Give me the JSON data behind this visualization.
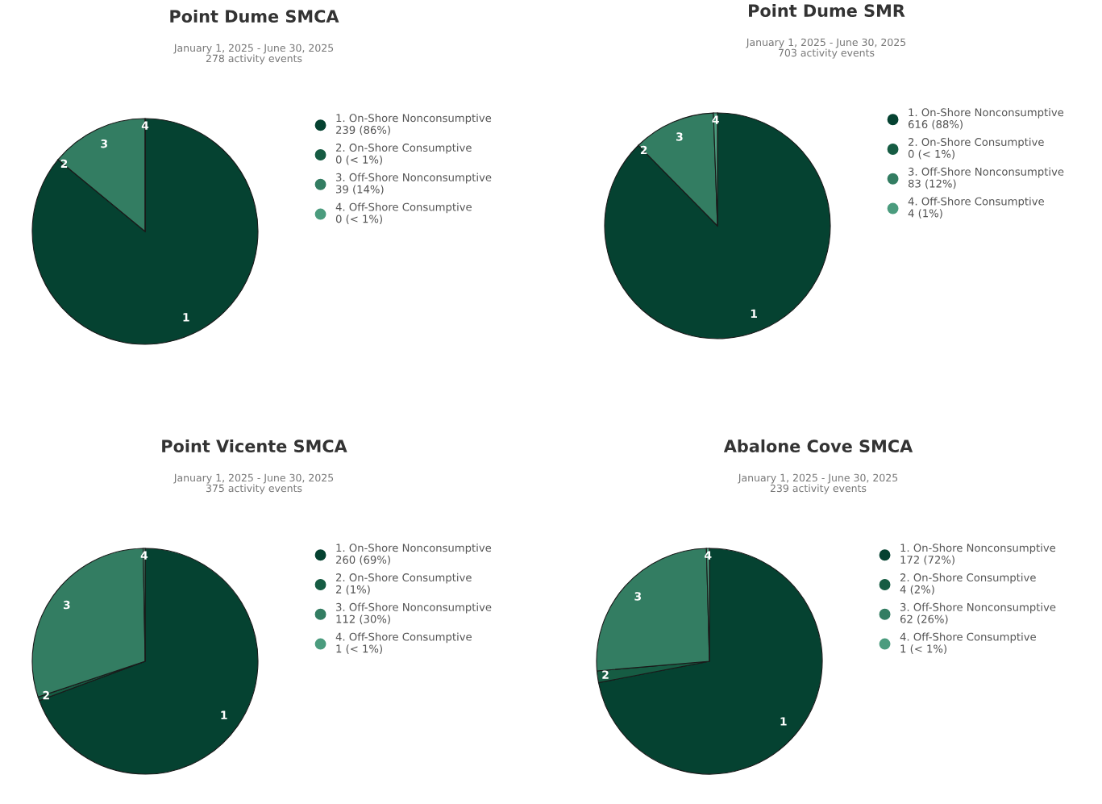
{
  "chart_data": [
    {
      "type": "pie",
      "title": "Point Dume SMCA",
      "subtitle": "January 1, 2025 - June 30, 2025\n278 activity events",
      "categories": [
        "1. On-Shore Nonconsumptive",
        "2. On-Shore Consumptive",
        "3. Off-Shore Nonconsumptive",
        "4. Off-Shore Consumptive"
      ],
      "values": [
        239,
        0,
        39,
        0
      ],
      "value_labels": [
        "239 (86%)",
        "0 (< 1%)",
        "39 (14%)",
        "0 (< 1%)"
      ],
      "colors": [
        "#054231",
        "#165c43",
        "#337d62",
        "#4b9c7e"
      ],
      "annotations": [
        "1",
        "2",
        "3",
        "4"
      ],
      "legend": "right"
    },
    {
      "type": "pie",
      "title": "Point Dume SMR",
      "subtitle": "January 1, 2025 - June 30, 2025\n703 activity events",
      "categories": [
        "1. On-Shore Nonconsumptive",
        "2. On-Shore Consumptive",
        "3. Off-Shore Nonconsumptive",
        "4. Off-Shore Consumptive"
      ],
      "values": [
        616,
        0,
        83,
        4
      ],
      "value_labels": [
        "616 (88%)",
        "0 (< 1%)",
        "83 (12%)",
        "4 (1%)"
      ],
      "colors": [
        "#054231",
        "#165c43",
        "#337d62",
        "#4b9c7e"
      ],
      "annotations": [
        "1",
        "2",
        "3",
        "4"
      ],
      "legend": "right"
    },
    {
      "type": "pie",
      "title": "Point Vicente SMCA",
      "subtitle": "January 1, 2025 - June 30, 2025\n375 activity events",
      "categories": [
        "1. On-Shore Nonconsumptive",
        "2. On-Shore Consumptive",
        "3. Off-Shore Nonconsumptive",
        "4. Off-Shore Consumptive"
      ],
      "values": [
        260,
        2,
        112,
        1
      ],
      "value_labels": [
        "260 (69%)",
        "2 (1%)",
        "112 (30%)",
        "1 (< 1%)"
      ],
      "colors": [
        "#054231",
        "#165c43",
        "#337d62",
        "#4b9c7e"
      ],
      "annotations": [
        "1",
        "2",
        "3",
        "4"
      ],
      "legend": "right"
    },
    {
      "type": "pie",
      "title": "Abalone Cove SMCA",
      "subtitle": "January 1, 2025 - June 30, 2025\n239 activity events",
      "categories": [
        "1. On-Shore Nonconsumptive",
        "2. On-Shore Consumptive",
        "3. Off-Shore Nonconsumptive",
        "4. Off-Shore Consumptive"
      ],
      "values": [
        172,
        4,
        62,
        1
      ],
      "value_labels": [
        "172 (72%)",
        "4 (2%)",
        "62 (26%)",
        "1 (< 1%)"
      ],
      "colors": [
        "#054231",
        "#165c43",
        "#337d62",
        "#4b9c7e"
      ],
      "annotations": [
        "1",
        "2",
        "3",
        "4"
      ],
      "legend": "right"
    }
  ]
}
